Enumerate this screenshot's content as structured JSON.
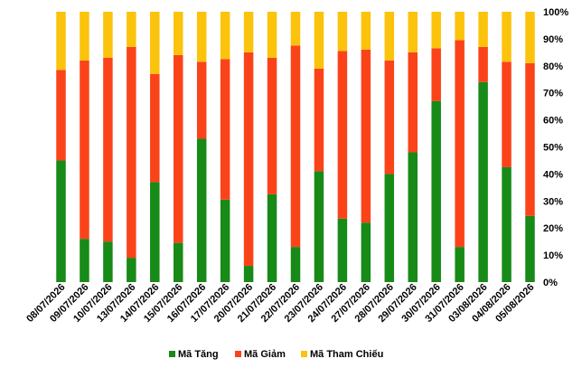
{
  "chart_data": {
    "type": "bar",
    "stacked": true,
    "percent": true,
    "categories": [
      "08/07/2026",
      "09/07/2026",
      "10/07/2026",
      "13/07/2026",
      "14/07/2026",
      "15/07/2026",
      "16/07/2026",
      "17/07/2026",
      "20/07/2026",
      "21/07/2026",
      "22/07/2026",
      "23/07/2026",
      "24/07/2026",
      "27/07/2026",
      "28/07/2026",
      "29/07/2026",
      "30/07/2026",
      "31/07/2026",
      "03/08/2026",
      "04/08/2026",
      "05/08/2026"
    ],
    "series": [
      {
        "name": "Mã Tăng",
        "color": "#178a17",
        "values": [
          45,
          16,
          15,
          9,
          37,
          14.5,
          53,
          30.5,
          6,
          32.5,
          13,
          41,
          23.5,
          22,
          40,
          48,
          67,
          13,
          74,
          42.5,
          24.5
        ]
      },
      {
        "name": "Mã Giảm",
        "color": "#fb431a",
        "values": [
          33.5,
          66,
          68,
          78,
          40,
          69.5,
          28.5,
          52,
          79,
          50.5,
          74.5,
          38,
          62,
          64,
          42,
          37,
          19.5,
          76.5,
          13,
          39,
          56.5
        ]
      },
      {
        "name": "Mã Tham Chiếu",
        "color": "#fbc30b",
        "values": [
          21.5,
          18,
          17,
          13,
          23,
          16,
          18.5,
          17.5,
          15,
          17,
          12.5,
          21,
          14.5,
          14,
          18,
          15,
          13.5,
          10.5,
          13,
          18.5,
          19
        ]
      }
    ],
    "y_ticks": [
      "0%",
      "10%",
      "20%",
      "30%",
      "40%",
      "50%",
      "60%",
      "70%",
      "80%",
      "90%",
      "100%"
    ],
    "ylim": [
      0,
      100
    ],
    "y_axis_position": "right",
    "grid": false,
    "legend_position": "bottom"
  }
}
